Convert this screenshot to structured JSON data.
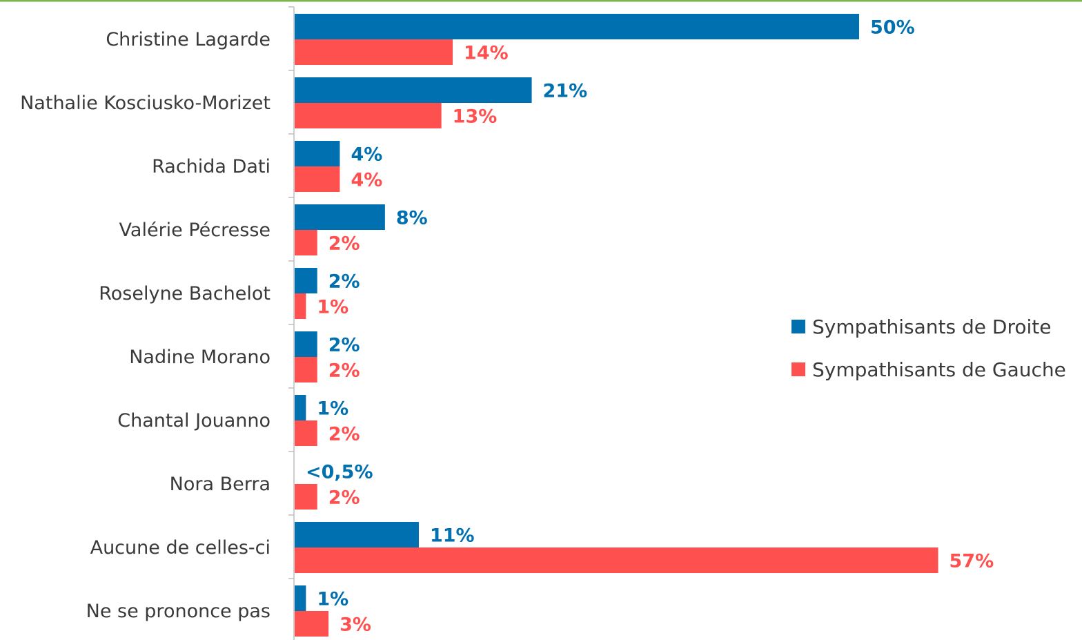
{
  "chart_data": {
    "type": "bar",
    "orientation": "horizontal",
    "categories": [
      "Christine Lagarde",
      "Nathalie Kosciusko-Morizet",
      "Rachida Dati",
      "Valérie Pécresse",
      "Roselyne Bachelot",
      "Nadine Morano",
      "Chantal Jouanno",
      "Nora Berra",
      "Aucune de celles-ci",
      "Ne se prononce pas"
    ],
    "series": [
      {
        "name": "Sympathisants de Droite",
        "color": "#0070b0",
        "values": [
          50,
          21,
          4,
          8,
          2,
          2,
          1,
          0,
          11,
          1
        ],
        "labels": [
          "50%",
          "21%",
          "4%",
          "8%",
          "2%",
          "2%",
          "1%",
          "<0,5%",
          "11%",
          "1%"
        ]
      },
      {
        "name": "Sympathisants de Gauche",
        "color": "#ff5050",
        "values": [
          14,
          13,
          4,
          2,
          1,
          2,
          2,
          2,
          57,
          3
        ],
        "labels": [
          "14%",
          "13%",
          "4%",
          "2%",
          "1%",
          "2%",
          "2%",
          "2%",
          "57%",
          "3%"
        ]
      }
    ],
    "xlim": [
      0,
      57
    ],
    "grid": false,
    "legend_position": "right-middle",
    "title": "",
    "xlabel": "",
    "ylabel": ""
  },
  "colors": {
    "top_rule": "#7ab648",
    "axis": "#bfbfbf",
    "category_text": "#3a3a3a"
  }
}
